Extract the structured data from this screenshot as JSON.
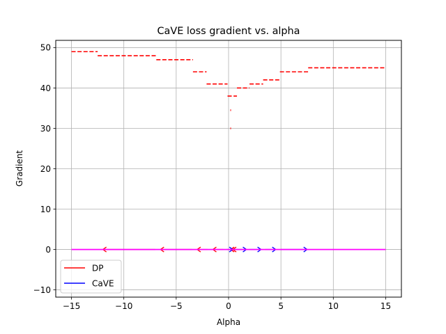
{
  "chart_data": {
    "type": "line",
    "title": "CaVE loss gradient vs. alpha",
    "xlabel": "Alpha",
    "ylabel": "Gradient",
    "xlim": [
      -16.5,
      16.5
    ],
    "ylim": [
      -11.8,
      51.8
    ],
    "xticks": [
      -15,
      -10,
      -5,
      0,
      5,
      10,
      15
    ],
    "xtick_labels": [
      "−15",
      "−10",
      "−5",
      "0",
      "5",
      "10",
      "15"
    ],
    "yticks": [
      -10,
      0,
      10,
      20,
      30,
      40,
      50
    ],
    "ytick_labels": [
      "−10",
      "0",
      "10",
      "20",
      "30",
      "40",
      "50"
    ],
    "grid": true,
    "legend": {
      "position": "lower-left",
      "entries": [
        {
          "label": "DP",
          "color": "#ff0000"
        },
        {
          "label": "CaVE",
          "color": "#0000ff"
        }
      ]
    },
    "series": [
      {
        "name": "DP",
        "color": "#ff0000",
        "style": "dashed-steps",
        "segments": [
          {
            "x0": -15,
            "x1": -12.5,
            "y": 49
          },
          {
            "x0": -12.5,
            "x1": -6.9,
            "y": 48
          },
          {
            "x0": -6.9,
            "x1": -3.4,
            "y": 47
          },
          {
            "x0": -3.4,
            "x1": -2.1,
            "y": 44
          },
          {
            "x0": -2.1,
            "x1": -0.1,
            "y": 41
          },
          {
            "x0": -0.1,
            "x1": 0.8,
            "y": 38
          },
          {
            "x0": 0.8,
            "x1": 2.0,
            "y": 40
          },
          {
            "x0": 2.0,
            "x1": 3.3,
            "y": 41
          },
          {
            "x0": 3.3,
            "x1": 4.9,
            "y": 42
          },
          {
            "x0": 4.9,
            "x1": 7.6,
            "y": 44
          },
          {
            "x0": 7.6,
            "x1": 15,
            "y": 45
          }
        ],
        "dots": [
          {
            "x": 0.2,
            "y": 34.5
          },
          {
            "x": 0.2,
            "y": 30
          }
        ],
        "arrows": [
          {
            "x_start": -7,
            "x_end": -12,
            "y": 0
          },
          {
            "x_start": -3.5,
            "x_end": -6.5,
            "y": 0
          },
          {
            "x_start": -2,
            "x_end": -3,
            "y": 0
          },
          {
            "x_start": -0.5,
            "x_end": -1.5,
            "y": 0
          },
          {
            "x_start": 0.5,
            "x_end": 0.2,
            "y": 0
          },
          {
            "x_start": 0.9,
            "x_end": 0.4,
            "y": 0
          }
        ]
      },
      {
        "name": "CaVE",
        "color": "#0000ff",
        "style": "arrows",
        "arrows": [
          {
            "x_start": -0.2,
            "x_end": 0.4,
            "y": 0
          },
          {
            "x_start": 0.6,
            "x_end": 1.7,
            "y": 0
          },
          {
            "x_start": 2.0,
            "x_end": 3.1,
            "y": 0
          },
          {
            "x_start": 3.5,
            "x_end": 4.5,
            "y": 0
          },
          {
            "x_start": 5.0,
            "x_end": 7.5,
            "y": 0
          }
        ]
      },
      {
        "name": "",
        "color": "#ff00ff",
        "style": "solid-line",
        "segments": [
          {
            "x0": -15,
            "x1": 15,
            "y": 0
          }
        ]
      }
    ]
  }
}
